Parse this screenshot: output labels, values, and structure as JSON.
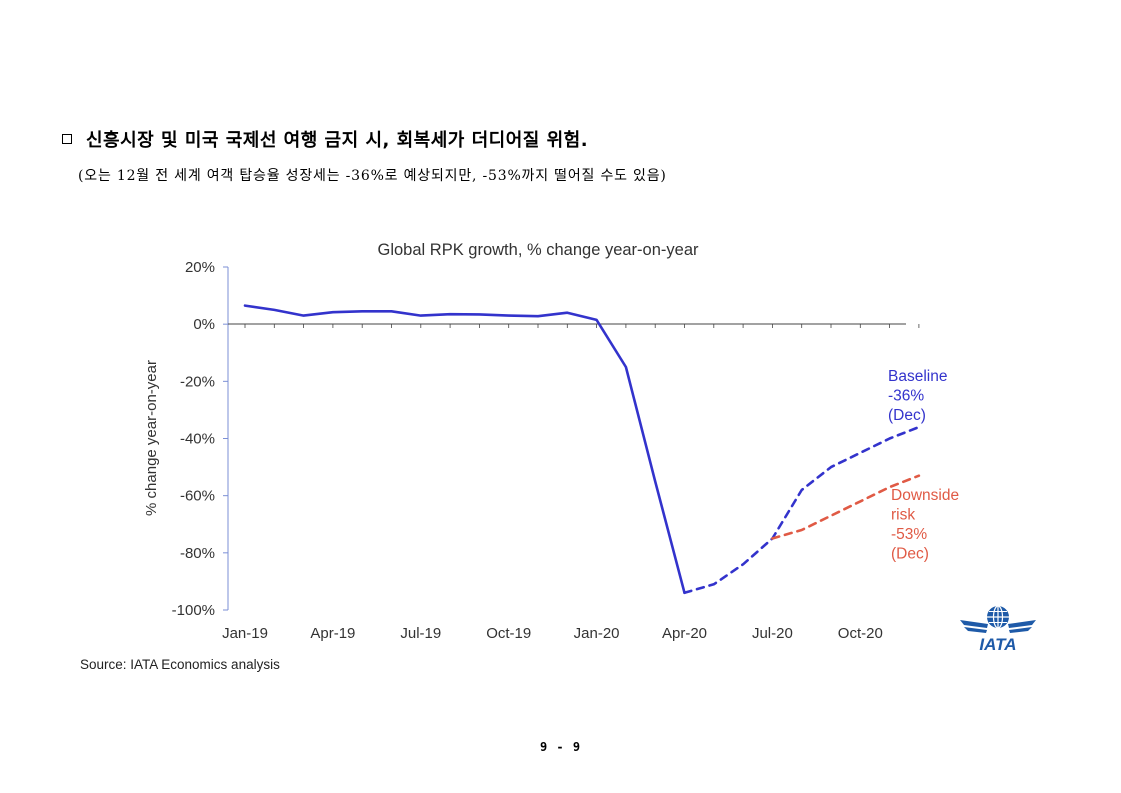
{
  "document": {
    "heading": "신흥시장 및 미국 국제선 여행 금지 시, 회복세가 더디어질 위험.",
    "subheading": "(오는 12월 전 세계 여객 탑승율 성장세는 -36%로 예상되지만, -53%까지 떨어질 수도 있음)",
    "source": "Source: IATA Economics analysis",
    "page_number": "9 - 9",
    "logo_text": "IATA"
  },
  "chart_data": {
    "type": "line",
    "title": "Global RPK growth, % change year-on-year",
    "ylabel": "% change year-on-year",
    "xlabel": "",
    "ylim": [
      -100,
      20
    ],
    "yticks": [
      20,
      0,
      -20,
      -40,
      -60,
      -80,
      -100
    ],
    "ytick_labels": [
      "20%",
      "0%",
      "-20%",
      "-40%",
      "-60%",
      "-80%",
      "-100%"
    ],
    "x_tick_labels": [
      {
        "label": "Jan-19",
        "index": 0
      },
      {
        "label": "Apr-19",
        "index": 3
      },
      {
        "label": "Jul-19",
        "index": 6
      },
      {
        "label": "Oct-19",
        "index": 9
      },
      {
        "label": "Jan-20",
        "index": 12
      },
      {
        "label": "Apr-20",
        "index": 15
      },
      {
        "label": "Jul-20",
        "index": 18
      },
      {
        "label": "Oct-20",
        "index": 21
      }
    ],
    "x_months": [
      "Jan-19",
      "Feb-19",
      "Mar-19",
      "Apr-19",
      "May-19",
      "Jun-19",
      "Jul-19",
      "Aug-19",
      "Sep-19",
      "Oct-19",
      "Nov-19",
      "Dec-19",
      "Jan-20",
      "Feb-20",
      "Mar-20",
      "Apr-20",
      "May-20",
      "Jun-20",
      "Jul-20",
      "Aug-20",
      "Sep-20",
      "Oct-20",
      "Nov-20",
      "Dec-20"
    ],
    "grid": false,
    "series": [
      {
        "style": "solid",
        "color": "#3333cc",
        "x": [
          "Jan-19",
          "Feb-19",
          "Mar-19",
          "Apr-19",
          "May-19",
          "Jun-19",
          "Jul-19",
          "Aug-19",
          "Sep-19",
          "Oct-19",
          "Nov-19",
          "Dec-19",
          "Jan-20",
          "Feb-20",
          "Mar-20",
          "Apr-20"
        ],
        "values": [
          6.5,
          5.0,
          3.0,
          4.2,
          4.5,
          4.5,
          3.0,
          3.5,
          3.4,
          3.0,
          2.8,
          4.0,
          1.5,
          -15,
          -55,
          -94
        ]
      },
      {
        "name": "Baseline",
        "style": "dashed",
        "color": "#3333cc",
        "x": [
          "Apr-20",
          "May-20",
          "Jun-20",
          "Jul-20",
          "Aug-20",
          "Sep-20",
          "Oct-20",
          "Nov-20",
          "Dec-20"
        ],
        "values": [
          -94,
          -91,
          -84,
          -75,
          -58,
          -50,
          -45,
          -40,
          -36
        ]
      },
      {
        "name": "Downside risk",
        "style": "dashed",
        "color": "#e05a45",
        "x": [
          "Jul-20",
          "Aug-20",
          "Sep-20",
          "Oct-20",
          "Nov-20",
          "Dec-20"
        ],
        "values": [
          -75,
          -72,
          -67,
          -62,
          -57,
          -53
        ]
      }
    ],
    "annotations": [
      {
        "series": "Baseline",
        "color": "#3333cc",
        "lines": [
          "Baseline",
          "-36%",
          "(Dec)"
        ]
      },
      {
        "series": "Downside risk",
        "color": "#e05a45",
        "lines": [
          "Downside",
          "risk",
          "-53%",
          "(Dec)"
        ]
      }
    ]
  }
}
